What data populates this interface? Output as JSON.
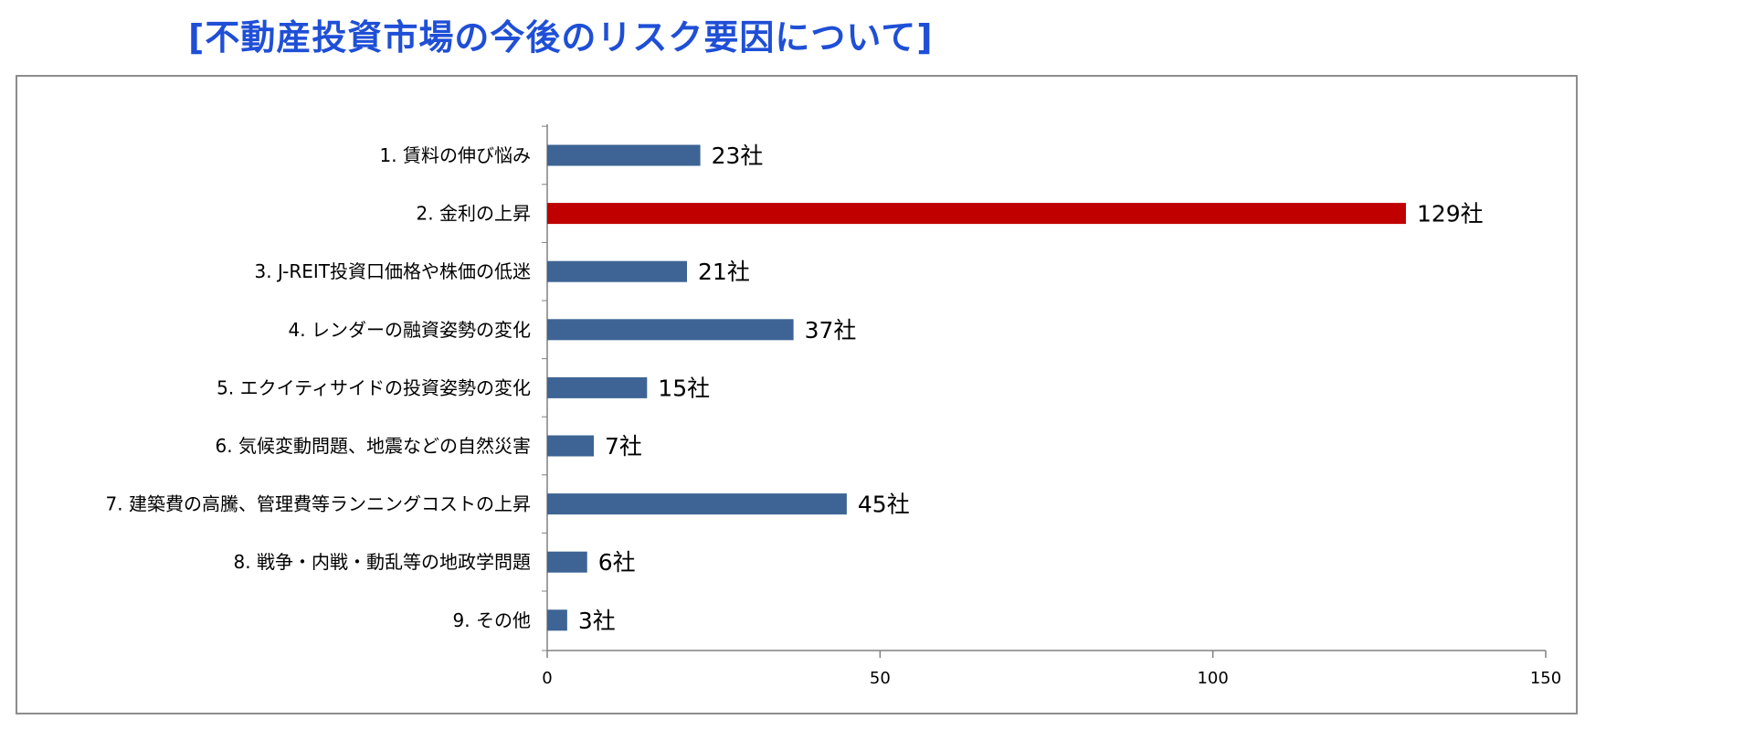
{
  "title": "[不動産投資市場の今後のリスク要因について]",
  "chart_data": {
    "type": "bar",
    "orientation": "horizontal",
    "title": "",
    "xlabel": "",
    "ylabel": "",
    "xlim": [
      0,
      150
    ],
    "x_ticks": [
      0,
      50,
      100,
      150
    ],
    "grid": false,
    "categories": [
      "1. 賃料の伸び悩み",
      "2. 金利の上昇",
      "3. J-REIT投資口価格や株価の低迷",
      "4. レンダーの融資姿勢の変化",
      "5. エクイティサイドの投資姿勢の変化",
      "6. 気候変動問題、地震などの自然災害",
      "7. 建築費の高騰、管理費等ランニングコストの上昇",
      "8. 戦争・内戦・動乱等の地政学問題",
      "9. その他"
    ],
    "values": [
      23,
      129,
      21,
      37,
      15,
      7,
      45,
      6,
      3
    ],
    "value_labels": [
      "23社",
      "129社",
      "21社",
      "37社",
      "15社",
      "7社",
      "45社",
      "6社",
      "3社"
    ],
    "bar_colors": [
      "#3d6494",
      "#c00000",
      "#3d6494",
      "#3d6494",
      "#3d6494",
      "#3d6494",
      "#3d6494",
      "#3d6494",
      "#3d6494"
    ]
  }
}
